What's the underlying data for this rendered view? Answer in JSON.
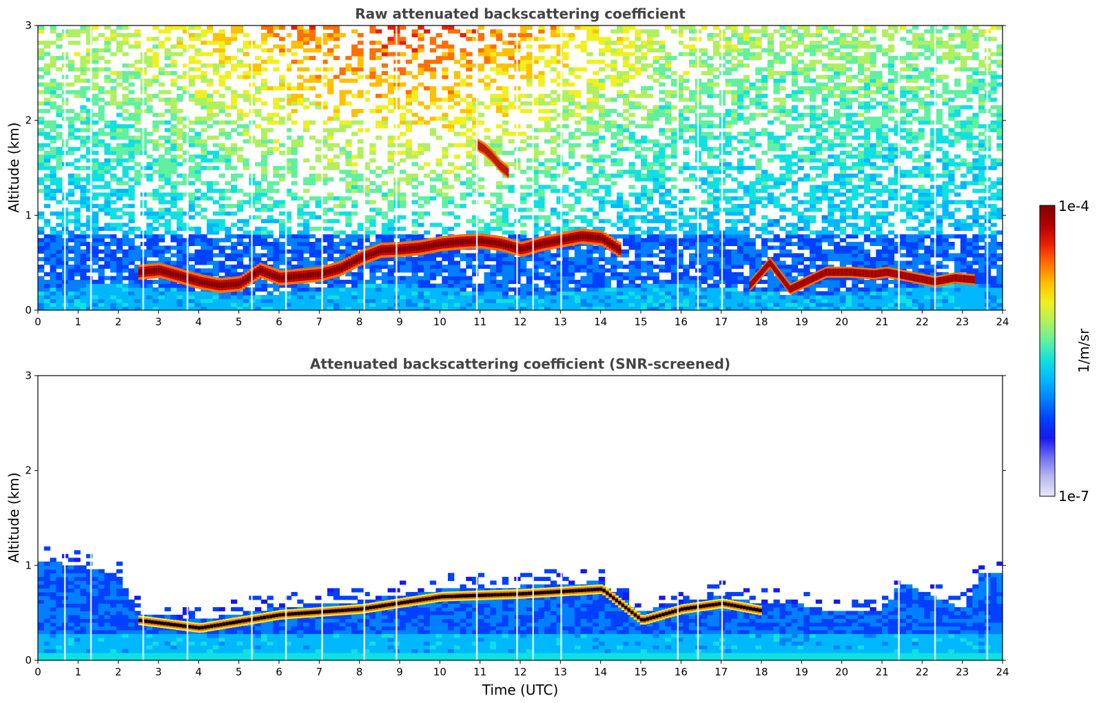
{
  "chart_data": [
    {
      "type": "heatmap",
      "title": "Raw attenuated backscattering coefficient",
      "xlabel": "",
      "ylabel": "Altitude (km)",
      "xlim": [
        0,
        24
      ],
      "ylim": [
        0,
        3
      ],
      "xticks": [
        "0",
        "1",
        "2",
        "3",
        "4",
        "5",
        "6",
        "7",
        "8",
        "9",
        "10",
        "11",
        "12",
        "13",
        "14",
        "15",
        "16",
        "17",
        "18",
        "19",
        "20",
        "21",
        "22",
        "23",
        "24"
      ],
      "yticks": [
        "0",
        "1",
        "2",
        "3"
      ],
      "cloud_layer": {
        "x": [
          2.5,
          3.0,
          3.5,
          4.0,
          4.5,
          5.0,
          5.5,
          6.0,
          6.5,
          7.0,
          7.5,
          8.0,
          8.5,
          9.0,
          9.5,
          10.0,
          10.5,
          11.0,
          11.5,
          12.0,
          12.5,
          13.0,
          13.5,
          14.0,
          14.5
        ],
        "y": [
          0.4,
          0.42,
          0.36,
          0.3,
          0.26,
          0.28,
          0.42,
          0.34,
          0.36,
          0.38,
          0.44,
          0.55,
          0.63,
          0.64,
          0.66,
          0.7,
          0.72,
          0.73,
          0.7,
          0.64,
          0.7,
          0.74,
          0.78,
          0.76,
          0.62
        ]
      },
      "elevated_feature": {
        "x": [
          10.9,
          11.1,
          11.3,
          11.5,
          11.7
        ],
        "y": [
          1.75,
          1.7,
          1.62,
          1.52,
          1.45
        ]
      },
      "late_cloud": {
        "x": [
          17.7,
          18.2,
          18.7,
          19.6,
          20.2,
          20.8,
          21.1,
          22.3,
          22.8,
          23.3
        ],
        "y": [
          0.26,
          0.5,
          0.22,
          0.4,
          0.4,
          0.38,
          0.4,
          0.3,
          0.34,
          0.32
        ]
      }
    },
    {
      "type": "heatmap",
      "title": "Attenuated backscattering coefficient (SNR-screened)",
      "xlabel": "Time (UTC)",
      "ylabel": "Altitude (km)",
      "xlim": [
        0,
        24
      ],
      "ylim": [
        0,
        3
      ],
      "xticks": [
        "0",
        "1",
        "2",
        "3",
        "4",
        "5",
        "6",
        "7",
        "8",
        "9",
        "10",
        "11",
        "12",
        "13",
        "14",
        "15",
        "16",
        "17",
        "18",
        "19",
        "20",
        "21",
        "22",
        "23",
        "24"
      ],
      "yticks": [
        "0",
        "1",
        "2",
        "3"
      ],
      "boundary_layer_top": {
        "x": [
          0.0,
          1.0,
          2.0,
          2.5,
          4.0,
          6.0,
          8.0,
          10.0,
          12.0,
          14.0,
          15.0,
          16.0,
          17.0,
          18.0,
          19.0,
          20.0,
          21.0,
          21.5,
          23.0,
          23.5,
          24.0
        ],
        "y": [
          1.05,
          1.0,
          0.9,
          0.5,
          0.42,
          0.56,
          0.62,
          0.75,
          0.78,
          0.83,
          0.5,
          0.62,
          0.68,
          0.6,
          0.58,
          0.5,
          0.52,
          0.82,
          0.55,
          0.92,
          0.92
        ]
      }
    }
  ],
  "colorbar": {
    "label": "1/m/sr",
    "top_label": "1e-4",
    "bottom_label": "1e-7",
    "colors": [
      "#e8e8f8",
      "#b8b8f0",
      "#7070f0",
      "#1818f0",
      "#0040ff",
      "#0080ff",
      "#00b8ff",
      "#10e0e0",
      "#60f0a0",
      "#b0f060",
      "#f0f020",
      "#ffc000",
      "#ff7000",
      "#e82000",
      "#b00000",
      "#800000"
    ]
  }
}
